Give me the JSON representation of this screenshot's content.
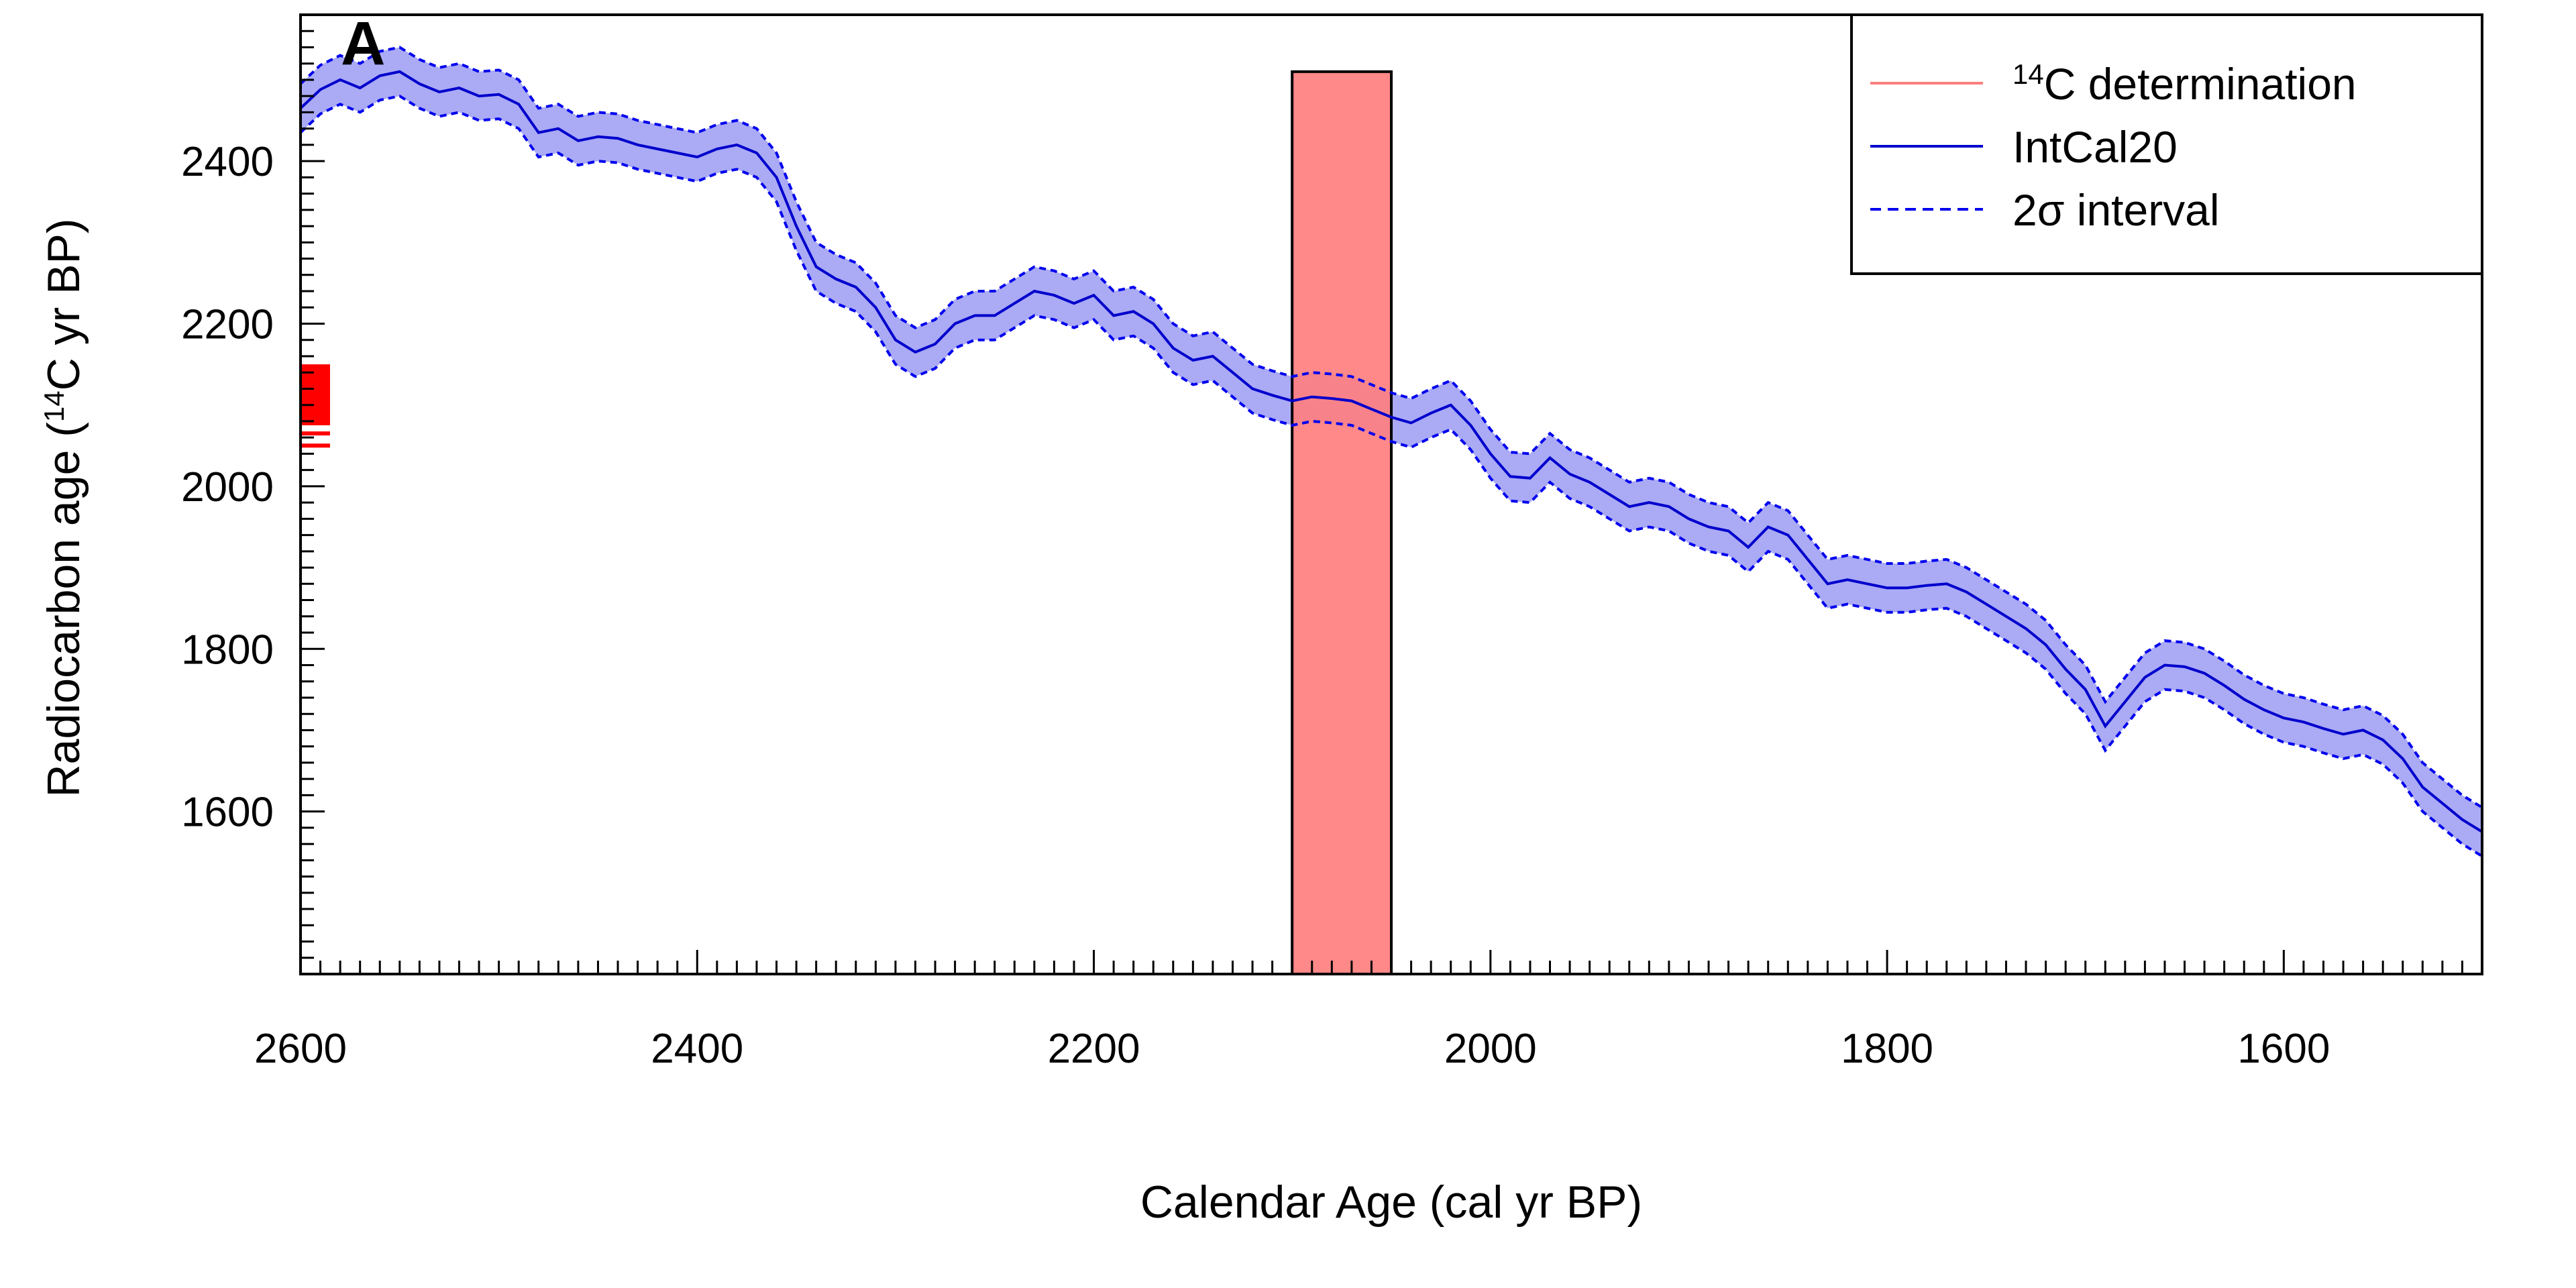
{
  "chart_data": {
    "type": "line",
    "panel_label": "A",
    "xlabel": "Calendar Age (cal yr BP)",
    "ylabel_prefix": "Radiocarbon age (",
    "ylabel_sup": "14",
    "ylabel_suffix": "C yr BP)",
    "xlim": [
      2600,
      1500
    ],
    "ylim": [
      1400,
      2580
    ],
    "x_ticks": [
      2600,
      2400,
      2200,
      2000,
      1800,
      1600
    ],
    "y_ticks": [
      1600,
      1800,
      2000,
      2200,
      2400
    ],
    "x_tick_labels": [
      "2600",
      "2400",
      "2200",
      "2000",
      "1800",
      "1600"
    ],
    "y_tick_labels": [
      "1600",
      "1800",
      "2000",
      "2200",
      "2400"
    ],
    "x_minor_step": 10,
    "y_minor_step": 20,
    "grid": false,
    "legend_position": "top-right",
    "legend": [
      {
        "sup": "14",
        "text": "C determination",
        "color": "#ff7f7f",
        "style": "solid"
      },
      {
        "text": "IntCal20",
        "color": "#0000cc",
        "style": "solid"
      },
      {
        "text": "2σ interval",
        "color": "#0000ee",
        "style": "dashed"
      }
    ],
    "series": [
      {
        "name": "IntCal20",
        "color": "#0000cc",
        "band_fill": "#aaaaf5",
        "band_half_width": 30,
        "x": [
          2600,
          2590,
          2580,
          2570,
          2560,
          2550,
          2540,
          2530,
          2520,
          2510,
          2500,
          2490,
          2480,
          2470,
          2460,
          2450,
          2440,
          2430,
          2420,
          2410,
          2400,
          2390,
          2380,
          2370,
          2360,
          2350,
          2340,
          2330,
          2320,
          2310,
          2300,
          2290,
          2280,
          2270,
          2260,
          2250,
          2240,
          2230,
          2220,
          2210,
          2200,
          2190,
          2180,
          2170,
          2160,
          2150,
          2140,
          2130,
          2120,
          2110,
          2100,
          2090,
          2080,
          2070,
          2060,
          2050,
          2040,
          2030,
          2020,
          2010,
          2000,
          1990,
          1980,
          1970,
          1960,
          1950,
          1940,
          1930,
          1920,
          1910,
          1900,
          1890,
          1880,
          1870,
          1860,
          1850,
          1840,
          1830,
          1820,
          1810,
          1800,
          1790,
          1780,
          1770,
          1760,
          1750,
          1740,
          1730,
          1720,
          1710,
          1700,
          1690,
          1680,
          1670,
          1660,
          1650,
          1640,
          1630,
          1620,
          1610,
          1600,
          1590,
          1580,
          1570,
          1560,
          1550,
          1540,
          1530,
          1520,
          1510,
          1500
        ],
        "y": [
          2465,
          2488,
          2500,
          2490,
          2505,
          2510,
          2495,
          2485,
          2490,
          2480,
          2482,
          2470,
          2435,
          2440,
          2425,
          2430,
          2428,
          2420,
          2415,
          2410,
          2405,
          2415,
          2420,
          2410,
          2380,
          2320,
          2270,
          2255,
          2245,
          2220,
          2180,
          2165,
          2175,
          2200,
          2210,
          2210,
          2225,
          2240,
          2235,
          2225,
          2235,
          2210,
          2215,
          2200,
          2170,
          2155,
          2160,
          2140,
          2120,
          2112,
          2105,
          2110,
          2108,
          2105,
          2095,
          2085,
          2078,
          2090,
          2100,
          2075,
          2040,
          2012,
          2010,
          2035,
          2015,
          2005,
          1990,
          1975,
          1980,
          1975,
          1960,
          1950,
          1945,
          1925,
          1950,
          1940,
          1910,
          1880,
          1885,
          1880,
          1875,
          1875,
          1878,
          1880,
          1870,
          1855,
          1840,
          1825,
          1805,
          1775,
          1750,
          1705,
          1735,
          1765,
          1780,
          1778,
          1770,
          1755,
          1738,
          1725,
          1715,
          1710,
          1702,
          1695,
          1700,
          1688,
          1665,
          1630,
          1610,
          1590,
          1575
        ]
      }
    ],
    "determination": {
      "name": "14C determination",
      "cal_range": [
        2100,
        2050
      ],
      "c14_range": [
        1400,
        2510
      ],
      "fill": "#ff7f7f",
      "stroke": "#000000"
    },
    "y_axis_marks": {
      "color": "#ff0000",
      "bar_range": [
        2075,
        2150
      ],
      "lines": [
        2065,
        2050
      ]
    }
  }
}
